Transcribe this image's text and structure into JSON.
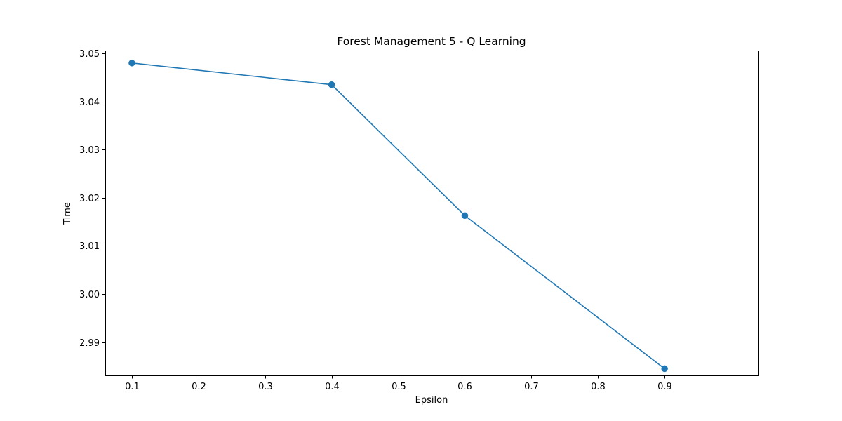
{
  "chart_data": {
    "type": "line",
    "title": "Forest Management 5 - Q Learning",
    "xlabel": "Epsilon",
    "ylabel": "Time",
    "x": [
      0.1,
      0.4,
      0.6,
      0.9
    ],
    "series": [
      {
        "values": [
          3.048,
          3.0435,
          3.0163,
          2.9845
        ],
        "color": "#1f77b4",
        "marker": "circle"
      }
    ],
    "xlim": [
      0.06,
      1.04
    ],
    "ylim": [
      2.9831,
      3.0506
    ],
    "xticks": [
      {
        "value": 0.1,
        "label": "0.1"
      },
      {
        "value": 0.2,
        "label": "0.2"
      },
      {
        "value": 0.3,
        "label": "0.3"
      },
      {
        "value": 0.4,
        "label": "0.4"
      },
      {
        "value": 0.5,
        "label": "0.5"
      },
      {
        "value": 0.6,
        "label": "0.6"
      },
      {
        "value": 0.7,
        "label": "0.7"
      },
      {
        "value": 0.8,
        "label": "0.8"
      },
      {
        "value": 0.9,
        "label": "0.9"
      }
    ],
    "yticks": [
      {
        "value": 2.99,
        "label": "2.99"
      },
      {
        "value": 3.0,
        "label": "3.00"
      },
      {
        "value": 3.01,
        "label": "3.01"
      },
      {
        "value": 3.02,
        "label": "3.02"
      },
      {
        "value": 3.03,
        "label": "3.03"
      },
      {
        "value": 3.04,
        "label": "3.04"
      },
      {
        "value": 3.05,
        "label": "3.05"
      }
    ],
    "grid": false,
    "legend": "none"
  }
}
